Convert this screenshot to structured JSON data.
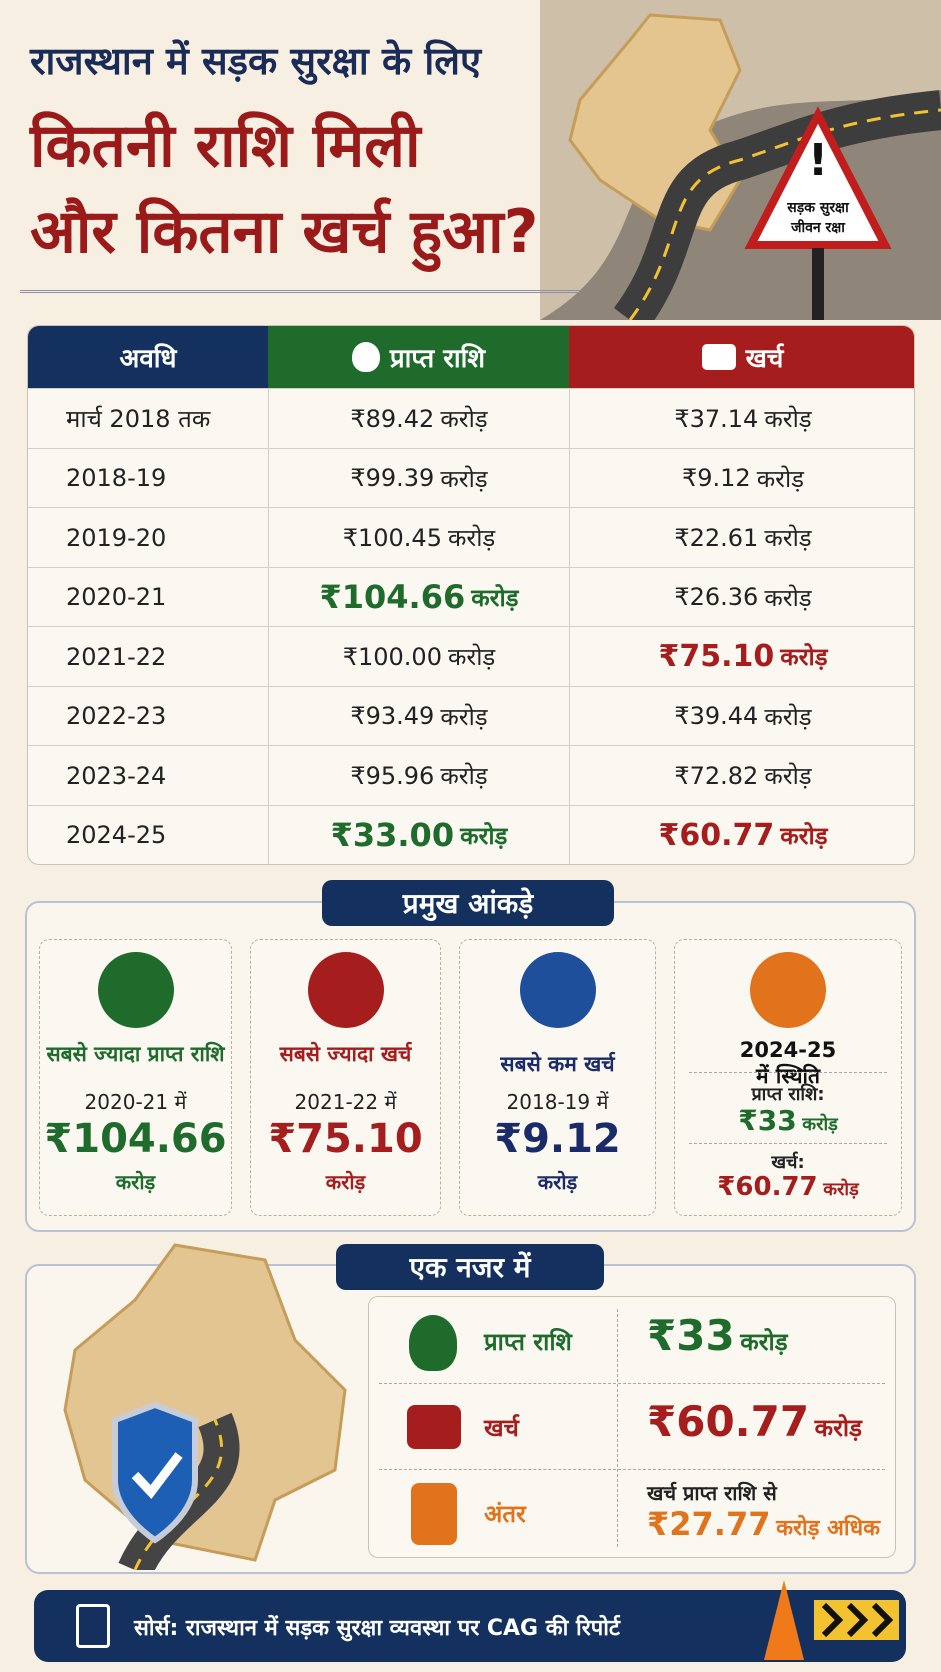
{
  "header": {
    "title_line1": "राजस्थान में सड़क सुरक्षा के लिए",
    "title_line2": "कितनी राशि मिली",
    "title_line3": "और कितना खर्च हुआ?",
    "sign_line1": "सड़क सुरक्षा",
    "sign_line2": "जीवन रक्षा"
  },
  "table": {
    "headers": [
      "अवधि",
      "प्राप्त राशि",
      "खर्च"
    ],
    "rows": [
      [
        "मार्च 2018 तक",
        {
          "amount": "₹89.42",
          "unit": "करोड़"
        },
        {
          "amount": "₹37.14",
          "unit": "करोड़"
        }
      ],
      [
        "2018-19",
        {
          "amount": "₹99.39",
          "unit": "करोड़"
        },
        {
          "amount": "₹9.12",
          "unit": "करोड़"
        }
      ],
      [
        "2019-20",
        {
          "amount": "₹100.45",
          "unit": "करोड़"
        },
        {
          "amount": "₹22.61",
          "unit": "करोड़"
        }
      ],
      [
        "2020-21",
        {
          "amount": "₹104.66",
          "unit": "करोड़"
        },
        {
          "amount": "₹26.36",
          "unit": "करोड़"
        }
      ],
      [
        "2021-22",
        {
          "amount": "₹100.00",
          "unit": "करोड़"
        },
        {
          "amount": "₹75.10",
          "unit": "करोड़"
        }
      ],
      [
        "2022-23",
        {
          "amount": "₹93.49",
          "unit": "करोड़"
        },
        {
          "amount": "₹39.44",
          "unit": "करोड़"
        }
      ],
      [
        "2023-24",
        {
          "amount": "₹95.96",
          "unit": "करोड़"
        },
        {
          "amount": "₹72.82",
          "unit": "करोड़"
        }
      ],
      [
        "2024-25",
        {
          "amount": "₹33.00",
          "unit": "करोड़"
        },
        {
          "amount": "₹60.77",
          "unit": "करोड़"
        }
      ]
    ]
  },
  "key_stats": {
    "title": "प्रमुख आंकड़े",
    "cards": [
      {
        "label": "सबसे ज्यादा प्राप्त राशि",
        "period": "2020-21 में",
        "amount": "₹104.66",
        "unit": "करोड़"
      },
      {
        "label": "सबसे ज्यादा खर्च",
        "period": "2021-22 में",
        "amount": "₹75.10",
        "unit": "करोड़"
      },
      {
        "label": "सबसे कम खर्च",
        "period": "2018-19 में",
        "amount": "₹9.12",
        "unit": "करोड़"
      },
      {
        "label": "2024-25 में स्थिति",
        "received_label": "प्राप्त राशि:",
        "received_amount": "₹33",
        "received_unit": "करोड़",
        "spent_label": "खर्च:",
        "spent_amount": "₹60.77",
        "spent_unit": "करोड़"
      }
    ]
  },
  "at_a_glance": {
    "title": "एक नजर में",
    "rows": [
      {
        "label": "प्राप्त राशि",
        "amount": "₹33",
        "unit": "करोड़"
      },
      {
        "label": "खर्च",
        "amount": "₹60.77",
        "unit": "करोड़"
      },
      {
        "label": "अंतर",
        "note": "खर्च प्राप्त राशि से",
        "amount": "₹27.77",
        "unit": "करोड़ अधिक"
      }
    ]
  },
  "footer": {
    "source": "सोर्स: राजस्थान में सड़क सुरक्षा व्यवस्था पर CAG की रिपोर्ट"
  }
}
